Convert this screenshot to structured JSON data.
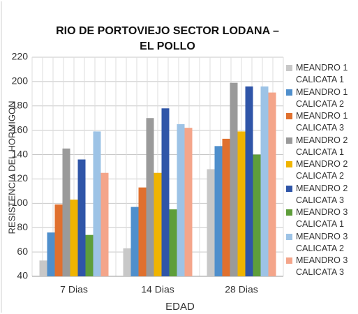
{
  "chart_data": {
    "type": "bar",
    "title": "RIO DE PORTOVIEJO SECTOR LODANA – EL POLLO",
    "x_label": "EDAD",
    "y_label": "RESISTENCIA DEL HORMIGON",
    "categories": [
      "7 Dias",
      "14 Dias",
      "28 Dias"
    ],
    "series": [
      {
        "name": "MEANDRO 1 CALICATA 1",
        "color": "#c8c8c8",
        "values": [
          53,
          63,
          128
        ]
      },
      {
        "name": "MEANDRO 1 CALICATA 2",
        "color": "#4f8fcc",
        "values": [
          76,
          97,
          147
        ]
      },
      {
        "name": "MEANDRO 1 CALICATA 3",
        "color": "#e0702e",
        "values": [
          99,
          113,
          153
        ]
      },
      {
        "name": "MEANDRO 2 CALICATA 1",
        "color": "#9a9a9a",
        "values": [
          145,
          170,
          199
        ]
      },
      {
        "name": "MEANDRO 2 CALICATA 2",
        "color": "#f0b400",
        "values": [
          103,
          125,
          159
        ]
      },
      {
        "name": "MEANDRO 2 CALICATA 3",
        "color": "#2f55a8",
        "values": [
          136,
          178,
          196
        ]
      },
      {
        "name": "MEANDRO 3 CALICATA 1",
        "color": "#5e9e3a",
        "values": [
          74,
          95,
          140
        ]
      },
      {
        "name": "MEANDRO 3 CALICATA 2",
        "color": "#9dc3e6",
        "values": [
          159,
          165,
          196
        ]
      },
      {
        "name": "MEANDRO 3 CALICATA 3",
        "color": "#f4a58a",
        "values": [
          125,
          162,
          191
        ]
      }
    ],
    "ylim": [
      40,
      220
    ],
    "yticks": [
      40,
      60,
      80,
      100,
      120,
      140,
      160,
      180,
      200,
      220
    ],
    "grid": true,
    "legend": "right"
  }
}
